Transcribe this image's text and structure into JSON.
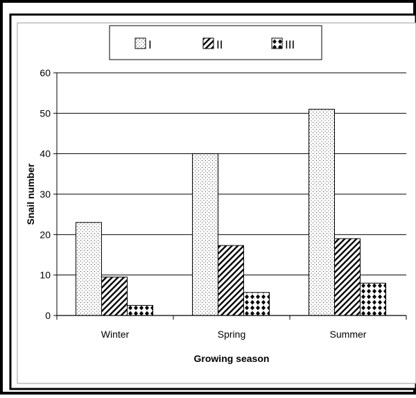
{
  "chart_data": {
    "type": "bar",
    "title": "",
    "xlabel": "Growing season",
    "ylabel": "Snail number",
    "categories": [
      "Winter",
      "Spring",
      "Summer"
    ],
    "series": [
      {
        "name": "I",
        "values": [
          23,
          40,
          51
        ],
        "pattern": "dots"
      },
      {
        "name": "II",
        "values": [
          9.5,
          17.3,
          19
        ],
        "pattern": "diagonal-hatch"
      },
      {
        "name": "III",
        "values": [
          2.5,
          5.7,
          8
        ],
        "pattern": "diamonds"
      }
    ],
    "ylim": [
      0,
      60
    ],
    "yticks": [
      0,
      10,
      20,
      30,
      40,
      50,
      60
    ],
    "grid": true,
    "legend_position": "top-center",
    "colors": {
      "bar_fill": "#ffffff",
      "ink": "#000000",
      "frame_outer": "#000000"
    }
  }
}
